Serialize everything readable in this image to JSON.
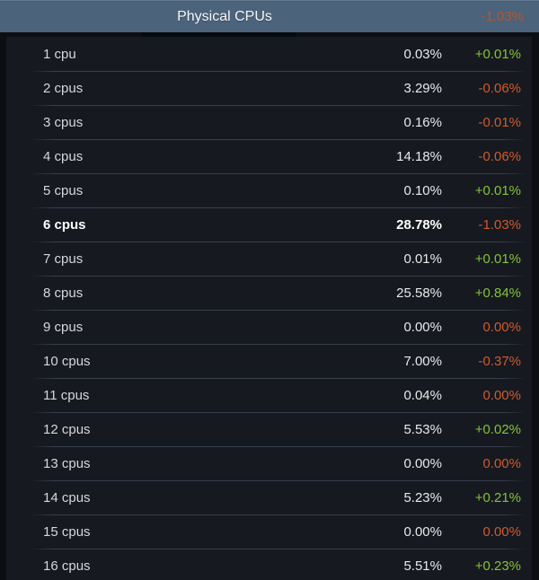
{
  "header": {
    "title": "Physical CPUs",
    "change": "-1.03%",
    "direction": "down"
  },
  "colors": {
    "header_bg": "#4b637b",
    "row_bg": "#161920",
    "page_bg": "#0c0e11",
    "positive_change": "#84c336",
    "negative_change": "#cd5b2e",
    "header_change": "#b2572c",
    "divider": "#383f4e"
  },
  "rows": [
    {
      "label": "1 cpu",
      "value": "0.03%",
      "change": "+0.01%",
      "direction": "up"
    },
    {
      "label": "2 cpus",
      "value": "3.29%",
      "change": "-0.06%",
      "direction": "down"
    },
    {
      "label": "3 cpus",
      "value": "0.16%",
      "change": "-0.01%",
      "direction": "down"
    },
    {
      "label": "4 cpus",
      "value": "14.18%",
      "change": "-0.06%",
      "direction": "down"
    },
    {
      "label": "5 cpus",
      "value": "0.10%",
      "change": "+0.01%",
      "direction": "up"
    },
    {
      "label": "6 cpus",
      "value": "28.78%",
      "change": "-1.03%",
      "direction": "down",
      "emphasis": "bold"
    },
    {
      "label": "7 cpus",
      "value": "0.01%",
      "change": "+0.01%",
      "direction": "up"
    },
    {
      "label": "8 cpus",
      "value": "25.58%",
      "change": "+0.84%",
      "direction": "up"
    },
    {
      "label": "9 cpus",
      "value": "0.00%",
      "change": "0.00%",
      "direction": "zero"
    },
    {
      "label": "10 cpus",
      "value": "7.00%",
      "change": "-0.37%",
      "direction": "down"
    },
    {
      "label": "11 cpus",
      "value": "0.04%",
      "change": "0.00%",
      "direction": "zero"
    },
    {
      "label": "12 cpus",
      "value": "5.53%",
      "change": "+0.02%",
      "direction": "up"
    },
    {
      "label": "13 cpus",
      "value": "0.00%",
      "change": "0.00%",
      "direction": "zero"
    },
    {
      "label": "14 cpus",
      "value": "5.23%",
      "change": "+0.21%",
      "direction": "up"
    },
    {
      "label": "15 cpus",
      "value": "0.00%",
      "change": "0.00%",
      "direction": "zero"
    },
    {
      "label": "16 cpus",
      "value": "5.51%",
      "change": "+0.23%",
      "direction": "up"
    }
  ]
}
